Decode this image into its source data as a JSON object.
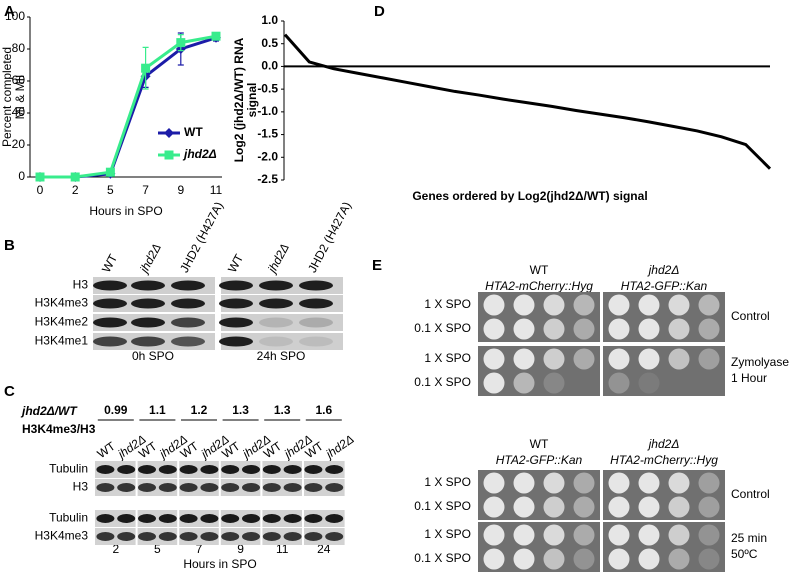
{
  "chart_data": [
    {
      "type": "line",
      "panel_label": "A",
      "categories": [
        "0",
        "2",
        "5",
        "7",
        "9",
        "11"
      ],
      "x_label": "Hours in SPO",
      "y_label": [
        "Percent completed",
        "MI & MII"
      ],
      "ylim": [
        0,
        100
      ],
      "yticks": [
        0,
        20,
        40,
        60,
        80,
        100
      ],
      "legend": "lower right",
      "series": [
        {
          "name": "WT",
          "color": "#1c1ca8",
          "marker": "diamond",
          "values": [
            0,
            0,
            2,
            63,
            80,
            87
          ],
          "errors": [
            0,
            0,
            1,
            7,
            10,
            2
          ]
        },
        {
          "name": "jhd2Δ",
          "color": "#38ec8c",
          "marker": "square",
          "values": [
            0,
            0,
            3,
            68,
            84,
            88
          ],
          "errors": [
            0,
            0,
            1,
            13,
            5,
            2
          ]
        }
      ]
    },
    {
      "type": "curve",
      "panel_label": "D",
      "values": [
        0.7,
        0.1,
        -0.05,
        -0.15,
        -0.25,
        -0.35,
        -0.45,
        -0.55,
        -0.63,
        -0.72,
        -0.8,
        -0.88,
        -0.97,
        -1.05,
        -1.13,
        -1.22,
        -1.32,
        -1.42,
        -1.55,
        -1.72,
        -2.25
      ],
      "color": "#000000",
      "zero_line": true,
      "x_label": "Genes ordered by Log2(jhd2Δ/WT) signal",
      "y_label": [
        "Log2 (jhd2Δ/WT) RNA",
        "signal"
      ],
      "ylim": [
        -2.5,
        1.0
      ],
      "yticks": [
        {
          "value": -2.5,
          "label": "-2.5"
        },
        {
          "value": -2.0,
          "label": "-2.0"
        },
        {
          "value": -1.5,
          "label": "-1.5"
        },
        {
          "value": -1.0,
          "label": "-1.0"
        },
        {
          "value": -0.5,
          "label": "-0.5"
        },
        {
          "value": 0.0,
          "label": "0.0"
        },
        {
          "value": 0.5,
          "label": "0.5"
        },
        {
          "value": 1.0,
          "label": "1.0"
        }
      ]
    }
  ],
  "panels": {
    "B": {
      "label": "B",
      "lanes": [
        "WT",
        "jhd2Δ",
        "JHD2 (H427A)"
      ],
      "rows": [
        "H3",
        "H3K4me3",
        "H3K4me2",
        "H3K4me1"
      ],
      "captions": [
        "0h SPO",
        "24h SPO"
      ]
    },
    "C": {
      "label": "C",
      "ratio_title": [
        "jhd2Δ/WT",
        "H3K4me3/H3"
      ],
      "ratios": [
        "0.99",
        "1.1",
        "1.2",
        "1.3",
        "1.3",
        "1.6"
      ],
      "lanes": [
        "WT",
        "jhd2Δ"
      ],
      "rows": [
        "Tubulin",
        "H3",
        "Tubulin",
        "H3K4me3"
      ],
      "times": [
        "2",
        "5",
        "7",
        "9",
        "11",
        "24"
      ],
      "x_label": "Hours in SPO"
    },
    "E": {
      "label": "E",
      "top_headers": [
        [
          "WT",
          "HTA2-mCherry::Hyg"
        ],
        [
          "jhd2Δ",
          "HTA2-GFP::Kan"
        ]
      ],
      "bottom_headers": [
        [
          "WT",
          "HTA2-GFP::Kan"
        ],
        [
          "jhd2Δ",
          "HTA2-mCherry::Hyg"
        ]
      ],
      "rows": [
        "1 X SPO",
        "0.1 X SPO"
      ],
      "conditions": [
        [
          "Control"
        ],
        [
          "Zymolyase",
          "1 Hour"
        ],
        [
          "Control"
        ],
        [
          "25 min",
          "50ºC"
        ]
      ]
    }
  }
}
